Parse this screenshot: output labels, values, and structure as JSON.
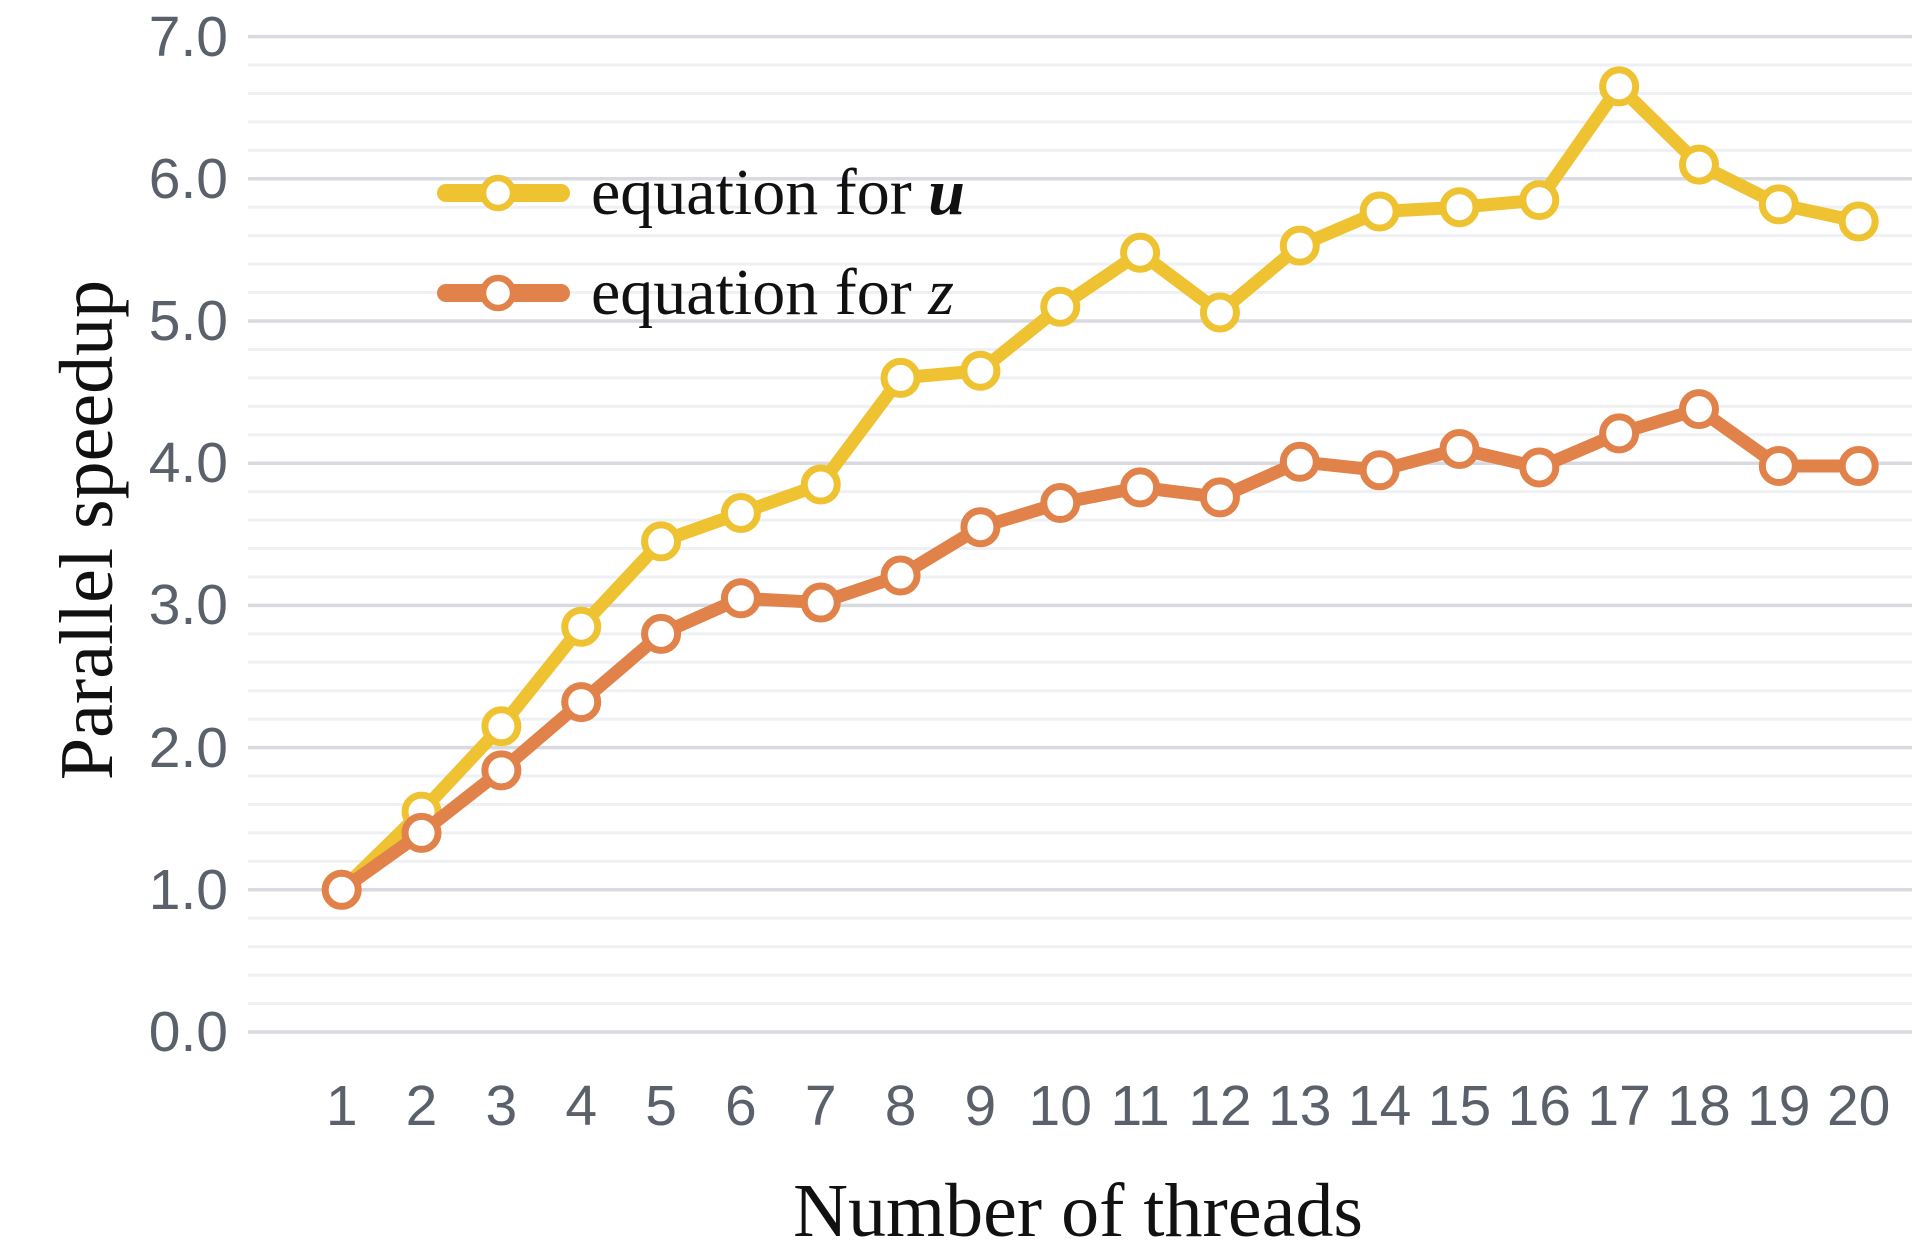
{
  "figure": {
    "x_axis_title": "Number of threads",
    "y_axis_title": "Parallel speedup"
  },
  "chart_data": {
    "type": "line",
    "title": "",
    "xlabel": "Number of threads",
    "ylabel": "Parallel speedup",
    "x": [
      1,
      2,
      3,
      4,
      5,
      6,
      7,
      8,
      9,
      10,
      11,
      12,
      13,
      14,
      15,
      16,
      17,
      18,
      19,
      20
    ],
    "x_tick_labels": [
      "1",
      "2",
      "3",
      "4",
      "5",
      "6",
      "7",
      "8",
      "9",
      "10",
      "11",
      "12",
      "13",
      "14",
      "15",
      "16",
      "17",
      "18",
      "19",
      "20"
    ],
    "y_ticks": [
      0,
      1,
      2,
      3,
      4,
      5,
      6,
      7
    ],
    "y_tick_labels": [
      "0.0",
      "1.0",
      "2.0",
      "3.0",
      "4.0",
      "5.0",
      "6.0",
      "7.0"
    ],
    "ylim": [
      0.0,
      7.0
    ],
    "minor_grid_step": 0.2,
    "grid": "horizontal",
    "legend_position": "upper-left-inside",
    "series": [
      {
        "name": "equation for u",
        "label_prefix": "equation for ",
        "label_var": "u",
        "var_style": "bold-italic",
        "color": "#EEC231",
        "values": [
          1.0,
          1.55,
          2.15,
          2.85,
          3.45,
          3.65,
          3.85,
          4.6,
          4.65,
          5.1,
          5.48,
          5.06,
          5.53,
          5.77,
          5.8,
          5.85,
          6.65,
          6.1,
          5.82,
          5.7
        ]
      },
      {
        "name": "equation for z",
        "label_prefix": "equation for ",
        "label_var": "z",
        "var_style": "italic",
        "color": "#E08249",
        "values": [
          1.0,
          1.4,
          1.84,
          2.32,
          2.8,
          3.05,
          3.02,
          3.21,
          3.55,
          3.72,
          3.83,
          3.76,
          4.01,
          3.95,
          4.1,
          3.97,
          4.21,
          4.38,
          3.98,
          3.98
        ]
      }
    ]
  },
  "style": {
    "major_grid_color": "#D8DAE0",
    "minor_grid_color": "#EFF0F3",
    "tick_label_color": "#5A616B",
    "axis_title_color": "#111111",
    "marker_fill": "#FFFFFF"
  }
}
